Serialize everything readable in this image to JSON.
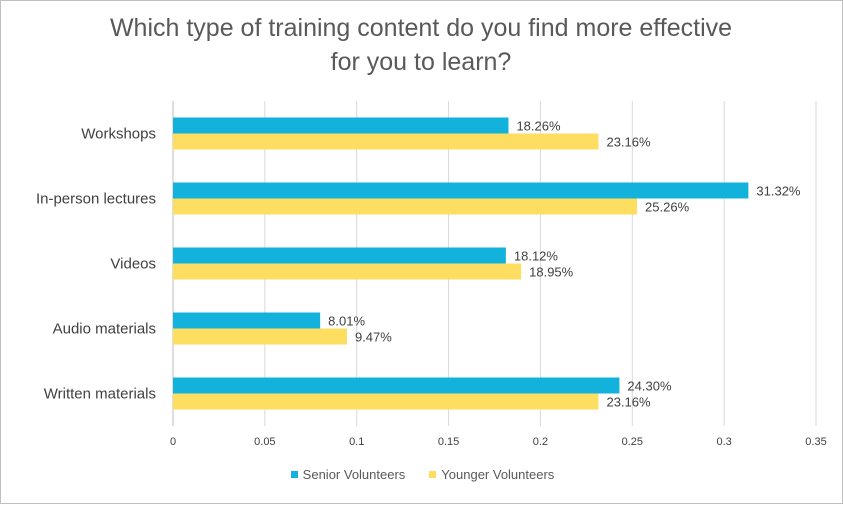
{
  "colors": {
    "senior": "#13b2dc",
    "younger": "#fede60",
    "grid": "#d9d9d9",
    "axis": "#bfbfbf",
    "text": "#404040"
  },
  "chart_data": {
    "type": "bar",
    "orientation": "horizontal",
    "title": "Which type of training content do you find more effective for you to learn?",
    "title_lines": [
      "Which type of training content do you find more effective",
      "for you to learn?"
    ],
    "categories": [
      "Workshops",
      "In-person lectures",
      "Videos",
      "Audio materials",
      "Written materials"
    ],
    "series": [
      {
        "name": "Senior Volunteers",
        "values": [
          0.1826,
          0.3132,
          0.1812,
          0.0801,
          0.243
        ],
        "labels": [
          "18.26%",
          "31.32%",
          "18.12%",
          "8.01%",
          "24.30%"
        ]
      },
      {
        "name": "Younger Volunteers",
        "values": [
          0.2316,
          0.2526,
          0.1895,
          0.0947,
          0.2316
        ],
        "labels": [
          "23.16%",
          "25.26%",
          "18.95%",
          "9.47%",
          "23.16%"
        ]
      }
    ],
    "xlim": [
      0,
      0.35
    ],
    "xticks": [
      "0",
      "0.05",
      "0.1",
      "0.15",
      "0.2",
      "0.25",
      "0.3",
      "0.35"
    ],
    "xtick_values": [
      0,
      0.05,
      0.1,
      0.15,
      0.2,
      0.25,
      0.3,
      0.35
    ],
    "grid": true,
    "legend_position": "bottom"
  }
}
